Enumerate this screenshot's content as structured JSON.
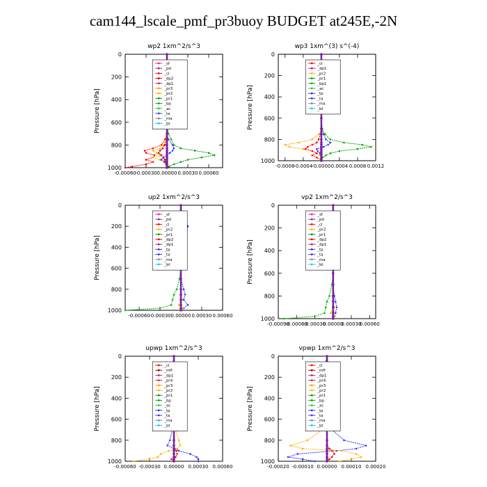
{
  "figure": {
    "title": "cam144_lscale_pmf_pr3buoy  BUDGET at245E,-2N"
  },
  "colors": {
    "sf": "#ff1493",
    "pd": "#7b2fbe",
    "cl": "#ff0000",
    "dp": "#00bb00",
    "dp1": "#c71585",
    "dp2": "#cc0000",
    "pr1": "#009900",
    "pr2": "#ffb000",
    "pr3": "#ff9900",
    "pr4": "#cc3300",
    "bp": "#00aa00",
    "ac": "#22cc22",
    "tp": "#3030ff",
    "ta": "#3030ff",
    "ma": "#888888",
    "bt": "#00ccff",
    "mfl": "#990000",
    "main": "#7b1fa2"
  },
  "chart_data": [
    {
      "type": "line",
      "title": "wp2   1xm^2/s^3",
      "ylabel": "Pressure [hPa]",
      "ylim": [
        1000,
        0
      ],
      "yticks": [
        "0",
        "200",
        "400",
        "600",
        "800",
        "1000"
      ],
      "xlim": [
        -0.0006,
        0.0008
      ],
      "xticks": [
        "-0.00060",
        "-0.00030",
        "0.00000",
        "0.00030",
        "0.00060"
      ],
      "xtick_values": [
        -0.0006,
        -0.0003,
        0.0,
        0.0003,
        0.0006
      ],
      "legend": [
        "_sf",
        "_pd",
        "_cl",
        "_dp2",
        "_dp1",
        "_pr3",
        "_pr2",
        "_pr1",
        "_bp",
        "_ac",
        "_ta",
        "_ma",
        "_bt"
      ],
      "pressure": [
        0,
        100,
        200,
        300,
        400,
        500,
        600,
        700,
        750,
        800,
        830,
        850,
        870,
        890,
        910,
        930,
        950,
        970,
        990,
        1000
      ],
      "series": [
        {
          "key": "pr1",
          "values": [
            0,
            0,
            4e-05,
            3e-05,
            1e-05,
            0,
            0,
            2e-05,
            6e-05,
            0.0001,
            0.0002,
            0.0004,
            0.0006,
            0.00068,
            0.0005,
            0.0003,
            0.0002,
            0.0001,
            3e-05,
            0
          ]
        },
        {
          "key": "cl",
          "values": [
            0,
            -1e-05,
            -3e-05,
            -2e-05,
            -1e-05,
            0,
            0,
            0,
            -3e-05,
            -8e-05,
            -0.0002,
            -0.00032,
            -0.0003,
            -0.00018,
            -0.0002,
            -0.0003,
            -0.0002,
            -0.0003,
            -0.0005,
            -0.0006
          ]
        },
        {
          "key": "pr2",
          "values": [
            0,
            0,
            0,
            0,
            0,
            0,
            0,
            0,
            -2e-05,
            -5e-05,
            -0.0001,
            -0.0002,
            -0.00015,
            -0.0001,
            -0.0002,
            -0.0001,
            -5e-05,
            -2e-05,
            0,
            0
          ]
        },
        {
          "key": "ta",
          "values": [
            0,
            0,
            0,
            0,
            0,
            0,
            0,
            0,
            2e-05,
            8e-05,
            0.0001,
            8e-05,
            4e-05,
            0,
            -5e-05,
            -8e-05,
            -3e-05,
            0,
            0,
            0
          ]
        },
        {
          "key": "dp2",
          "values": [
            0,
            0,
            -1e-05,
            0,
            0,
            0,
            0,
            0,
            -1e-05,
            -3e-05,
            -6e-05,
            -0.0001,
            -0.00012,
            -8e-05,
            -5e-05,
            -3e-05,
            -2e-05,
            -1e-05,
            0,
            0
          ]
        },
        {
          "key": "main",
          "values": [
            0,
            0,
            0,
            0,
            0,
            0,
            0,
            0,
            0,
            0,
            0,
            0,
            0,
            0,
            0,
            0,
            0,
            0,
            0,
            0
          ]
        }
      ]
    },
    {
      "type": "line",
      "title": "wp3   1xm^(3) s^(-4)",
      "ylabel": "Pressure [hPa]",
      "ylim": [
        1000,
        0
      ],
      "yticks": [
        "0",
        "200",
        "400",
        "600",
        "800",
        "1000"
      ],
      "xlim": [
        -0.00095,
        0.0012
      ],
      "xticks": [
        "-0.0008",
        "-0.0004",
        "-0.0000",
        "0.0004",
        "0.0008",
        "0.0012"
      ],
      "xtick_values": [
        -0.0008,
        -0.0004,
        0.0,
        0.0004,
        0.0008,
        0.0012
      ],
      "legend": [
        "_cl",
        "_dp1",
        "_pr2",
        "_pr1",
        "_bp1",
        "_ac",
        "_tp",
        "_ta",
        "_ma",
        "_bt"
      ],
      "pressure": [
        0,
        100,
        200,
        300,
        400,
        500,
        600,
        700,
        750,
        800,
        830,
        850,
        870,
        890,
        910,
        930,
        950,
        970,
        990,
        1000
      ],
      "series": [
        {
          "key": "bp",
          "values": [
            0,
            0,
            0,
            0,
            1e-05,
            0,
            0,
            2e-05,
            8e-05,
            0.0002,
            0.0005,
            0.0009,
            0.0011,
            0.0008,
            0.0004,
            0.0002,
            0.0001,
            3e-05,
            0,
            0
          ]
        },
        {
          "key": "pr2",
          "values": [
            0,
            0,
            0,
            0,
            0,
            0,
            0,
            0,
            -5e-05,
            -0.0002,
            -0.0005,
            -0.0008,
            -0.0007,
            -0.0004,
            -0.0002,
            -0.0001,
            -4e-05,
            0,
            0,
            0
          ]
        },
        {
          "key": "cl",
          "values": [
            0,
            0,
            0,
            0,
            0,
            0,
            0,
            0,
            -2e-05,
            -6e-05,
            -0.0001,
            -0.0002,
            -0.0003,
            -0.00035,
            -0.0002,
            -0.0001,
            -0.0002,
            -0.0001,
            0,
            0
          ]
        },
        {
          "key": "tp",
          "values": [
            0,
            0,
            0,
            0,
            0,
            0,
            0,
            0,
            5e-05,
            0.0001,
            0.0002,
            0.00015,
            5e-05,
            -0.0001,
            -8e-05,
            -3e-05,
            0,
            0,
            0,
            0
          ]
        },
        {
          "key": "main",
          "values": [
            0,
            0,
            0,
            0,
            0,
            0,
            0,
            0,
            0,
            0,
            0,
            0,
            0,
            0,
            0,
            0,
            0,
            0,
            0,
            0
          ]
        }
      ]
    },
    {
      "type": "line",
      "title": "up2   1xm^2/s^3",
      "ylabel": "Pressure [hPa]",
      "ylim": [
        1000,
        0
      ],
      "yticks": [
        "0",
        "200",
        "400",
        "600",
        "800",
        "1000"
      ],
      "xlim": [
        -0.0008,
        0.0006
      ],
      "xticks": [
        "-0.00060",
        "-0.00030",
        "0.00000",
        "0.00030",
        "0.00060"
      ],
      "xtick_values": [
        -0.0006,
        -0.0003,
        0.0,
        0.0003,
        0.0006
      ],
      "legend": [
        "_sf",
        "_pd",
        "_cl",
        "_pr2",
        "_pr1",
        "_dp2",
        "_dp1",
        "_tp",
        "_ta",
        "_ma",
        "_bt"
      ],
      "pressure": [
        0,
        100,
        150,
        200,
        250,
        300,
        400,
        500,
        600,
        700,
        800,
        850,
        900,
        950,
        980,
        1000
      ],
      "series": [
        {
          "key": "dp",
          "values": [
            0,
            -2e-05,
            -6e-05,
            -0.0001,
            -0.0001,
            -6e-05,
            -2e-05,
            0,
            0,
            -2e-05,
            -6e-05,
            -0.0001,
            -0.00012,
            -0.00014,
            -0.0003,
            -0.0008
          ]
        },
        {
          "key": "tp",
          "values": [
            0,
            2e-05,
            6e-05,
            0.0001,
            8e-05,
            4e-05,
            1e-05,
            0,
            0,
            0,
            4e-05,
            6e-05,
            4e-05,
            0.0001,
            4e-05,
            0
          ]
        },
        {
          "key": "pr2",
          "values": [
            0,
            0,
            0,
            0,
            0,
            0,
            0,
            0,
            0,
            0,
            0,
            0,
            2e-05,
            -3e-05,
            3e-05,
            0
          ]
        },
        {
          "key": "main",
          "values": [
            0,
            0,
            0,
            0,
            0,
            0,
            0,
            0,
            0,
            0,
            0,
            0,
            0,
            0,
            0,
            0
          ]
        }
      ]
    },
    {
      "type": "line",
      "title": "vp2   1xm^2/s^3",
      "ylabel": "Pressure [hPa]",
      "ylim": [
        1000,
        0
      ],
      "yticks": [
        "0",
        "200",
        "400",
        "600",
        "800",
        "1000"
      ],
      "xlim": [
        -0.0009,
        0.0007
      ],
      "xticks": [
        "-0.00090",
        "-0.00060",
        "-0.00030",
        "0.00000",
        "0.00030",
        "0.00060"
      ],
      "xtick_values": [
        -0.0009,
        -0.0006,
        -0.0003,
        0.0,
        0.0003,
        0.0006
      ],
      "legend": [
        "_sf",
        "_pd",
        "_cl",
        "_pr2",
        "_pr1",
        "_dp2",
        "_dp1",
        "_tp",
        "_ta",
        "_ma",
        "_bt"
      ],
      "pressure": [
        0,
        100,
        150,
        200,
        250,
        300,
        400,
        500,
        600,
        700,
        800,
        850,
        900,
        950,
        980,
        1000
      ],
      "series": [
        {
          "key": "dp",
          "values": [
            0,
            -1e-05,
            -3e-05,
            -5e-05,
            -5e-05,
            -3e-05,
            -1e-05,
            0,
            0,
            -2e-05,
            -6e-05,
            -0.0001,
            -0.00012,
            -0.00014,
            -0.0003,
            -0.0008
          ]
        },
        {
          "key": "tp",
          "values": [
            0,
            1e-05,
            3e-05,
            5e-05,
            4e-05,
            2e-05,
            1e-05,
            0,
            0,
            0,
            2e-05,
            4e-05,
            6e-05,
            4e-05,
            2e-05,
            0
          ]
        },
        {
          "key": "pr2",
          "values": [
            0,
            0,
            0,
            0,
            0,
            0,
            0,
            0,
            0,
            0,
            0,
            0,
            2e-05,
            -4e-05,
            3e-05,
            0
          ]
        },
        {
          "key": "main",
          "values": [
            0,
            0,
            0,
            0,
            0,
            0,
            0,
            0,
            0,
            0,
            0,
            0,
            0,
            0,
            0,
            0
          ]
        }
      ]
    },
    {
      "type": "line",
      "title": "upwp   1xm^2/s^3",
      "ylabel": "Pressure [hPa]",
      "ylim": [
        1000,
        0
      ],
      "yticks": [
        "0",
        "200",
        "400",
        "600",
        "800",
        "1000"
      ],
      "xlim": [
        -0.0006,
        0.0006
      ],
      "xticks": [
        "-0.00060",
        "-0.00030",
        "0.00000",
        "0.00030",
        "0.00060"
      ],
      "xtick_values": [
        -0.0006,
        -0.0003,
        0.0,
        0.0003,
        0.0006
      ],
      "legend": [
        "_cl",
        "_mfl",
        "_dp1",
        "_pr4",
        "_pr3",
        "_pr2",
        "_pr1",
        "_bp",
        "_ac",
        "_tp",
        "_ta",
        "_ma",
        "_bt"
      ],
      "pressure": [
        0,
        100,
        150,
        200,
        250,
        300,
        400,
        500,
        600,
        700,
        800,
        850,
        880,
        900,
        930,
        960,
        980,
        1000
      ],
      "series": [
        {
          "key": "tp",
          "values": [
            0,
            -2e-05,
            -6e-05,
            -0.0001,
            -8e-05,
            -3e-05,
            0,
            0,
            0,
            -2e-05,
            -5e-05,
            -8e-05,
            1e-05,
            6e-05,
            0.0002,
            0.00028,
            0.0003,
            0.0003
          ]
        },
        {
          "key": "pr2",
          "values": [
            0,
            2e-05,
            5e-05,
            8e-05,
            6e-05,
            3e-05,
            0,
            0,
            0,
            2e-05,
            6e-05,
            8e-05,
            4e-05,
            -6e-05,
            -0.00016,
            -0.0002,
            -0.0003,
            -0.0005
          ]
        },
        {
          "key": "cl",
          "values": [
            0,
            0,
            0,
            0,
            0,
            0,
            0,
            0,
            0,
            0,
            0,
            0,
            0,
            3e-05,
            4e-05,
            2e-05,
            -3e-05,
            0
          ]
        },
        {
          "key": "main",
          "values": [
            0,
            0,
            0,
            0,
            0,
            0,
            0,
            0,
            0,
            0,
            0,
            0,
            0,
            0,
            0,
            0,
            0,
            0
          ]
        }
      ]
    },
    {
      "type": "line",
      "title": "vpwp   1xm^2/s^3",
      "ylabel": "Pressure [hPa]",
      "ylim": [
        1000,
        0
      ],
      "yticks": [
        "0",
        "200",
        "400",
        "600",
        "800",
        "1000"
      ],
      "xlim": [
        -0.0002,
        0.0002
      ],
      "xticks": [
        "-0.00020",
        "-0.00010",
        "0.00000",
        "0.00010",
        "0.00020"
      ],
      "xtick_values": [
        -0.0002,
        -0.0001,
        0.0,
        0.0001,
        0.0002
      ],
      "legend": [
        "_cl",
        "_mfl",
        "_dp1",
        "_pr4",
        "_pr3",
        "_pr2",
        "_pr1",
        "_bp",
        "_ac",
        "_tp",
        "_ta",
        "_ma",
        "_bt"
      ],
      "pressure": [
        0,
        100,
        150,
        200,
        250,
        300,
        400,
        500,
        600,
        700,
        800,
        850,
        880,
        900,
        930,
        960,
        980,
        1000
      ],
      "series": [
        {
          "key": "tp",
          "values": [
            0,
            -1e-05,
            -2e-05,
            -3e-05,
            -2e-05,
            -1e-05,
            0,
            0,
            0,
            2e-05,
            7e-05,
            0.00016,
            0.00012,
            4e-05,
            -0.00012,
            -0.00016,
            -0.0001,
            -5e-05
          ]
        },
        {
          "key": "pr2",
          "values": [
            0,
            1e-05,
            2e-05,
            2e-05,
            2e-05,
            1e-05,
            0,
            0,
            0,
            -2e-05,
            -8e-05,
            -0.00015,
            -0.0001,
            6e-05,
            0.00012,
            0.00014,
            0.0001,
            5e-05
          ]
        },
        {
          "key": "cl",
          "values": [
            0,
            0,
            0,
            0,
            0,
            0,
            0,
            0,
            0,
            0,
            0,
            0,
            1e-05,
            2e-05,
            3e-05,
            2e-05,
            1e-05,
            0
          ]
        },
        {
          "key": "main",
          "values": [
            0,
            0,
            0,
            0,
            0,
            0,
            0,
            0,
            0,
            0,
            0,
            0,
            0,
            0,
            0,
            0,
            0,
            0
          ]
        }
      ]
    }
  ]
}
